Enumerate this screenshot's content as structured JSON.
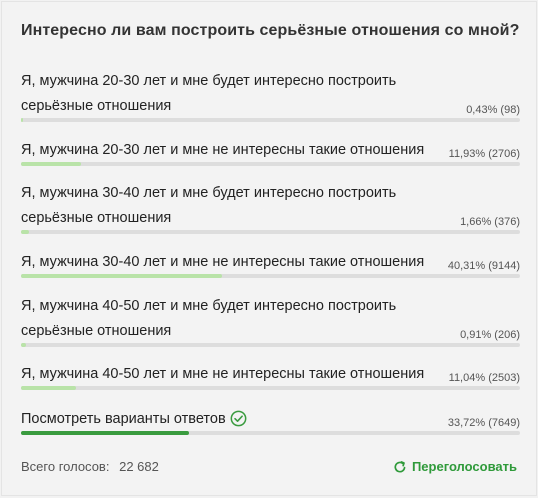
{
  "poll": {
    "question": "Интересно ли вам построить серьёзные отношения со мной?",
    "options": [
      {
        "label": "Я, мужчина 20-30 лет и мне будет интересно построить серьёзные отношения",
        "result": "0,43% (98)",
        "fraction": 0.0043
      },
      {
        "label": "Я, мужчина 20-30 лет и мне не интересны такие отношения",
        "result": "11,93% (2706)",
        "fraction": 0.1193
      },
      {
        "label": "Я, мужчина 30-40 лет и мне будет интересно построить серьёзные отношения",
        "result": "1,66% (376)",
        "fraction": 0.0166
      },
      {
        "label": "Я, мужчина 30-40 лет и мне не интересны такие отношения",
        "result": "40,31% (9144)",
        "fraction": 0.4031
      },
      {
        "label": "Я, мужчина 40-50 лет и мне будет интересно построить серьёзные отношения",
        "result": "0,91% (206)",
        "fraction": 0.0091
      },
      {
        "label": "Я, мужчина 40-50 лет и мне не интересны такие отношения",
        "result": "11,04% (2503)",
        "fraction": 0.1104
      },
      {
        "label": "Посмотреть варианты ответов",
        "result": "33,72% (7649)",
        "fraction": 0.3372,
        "selected": true
      }
    ],
    "total_label": "Всего голосов:",
    "total_value": "22 682",
    "revote_label": "Переголосовать",
    "colors": {
      "fill": "#b9e3a8",
      "selected_fill": "#3a9b3f",
      "accent": "#2f9a3a"
    },
    "icons": {
      "selected": "check-circle-icon",
      "revote": "refresh-icon"
    }
  }
}
